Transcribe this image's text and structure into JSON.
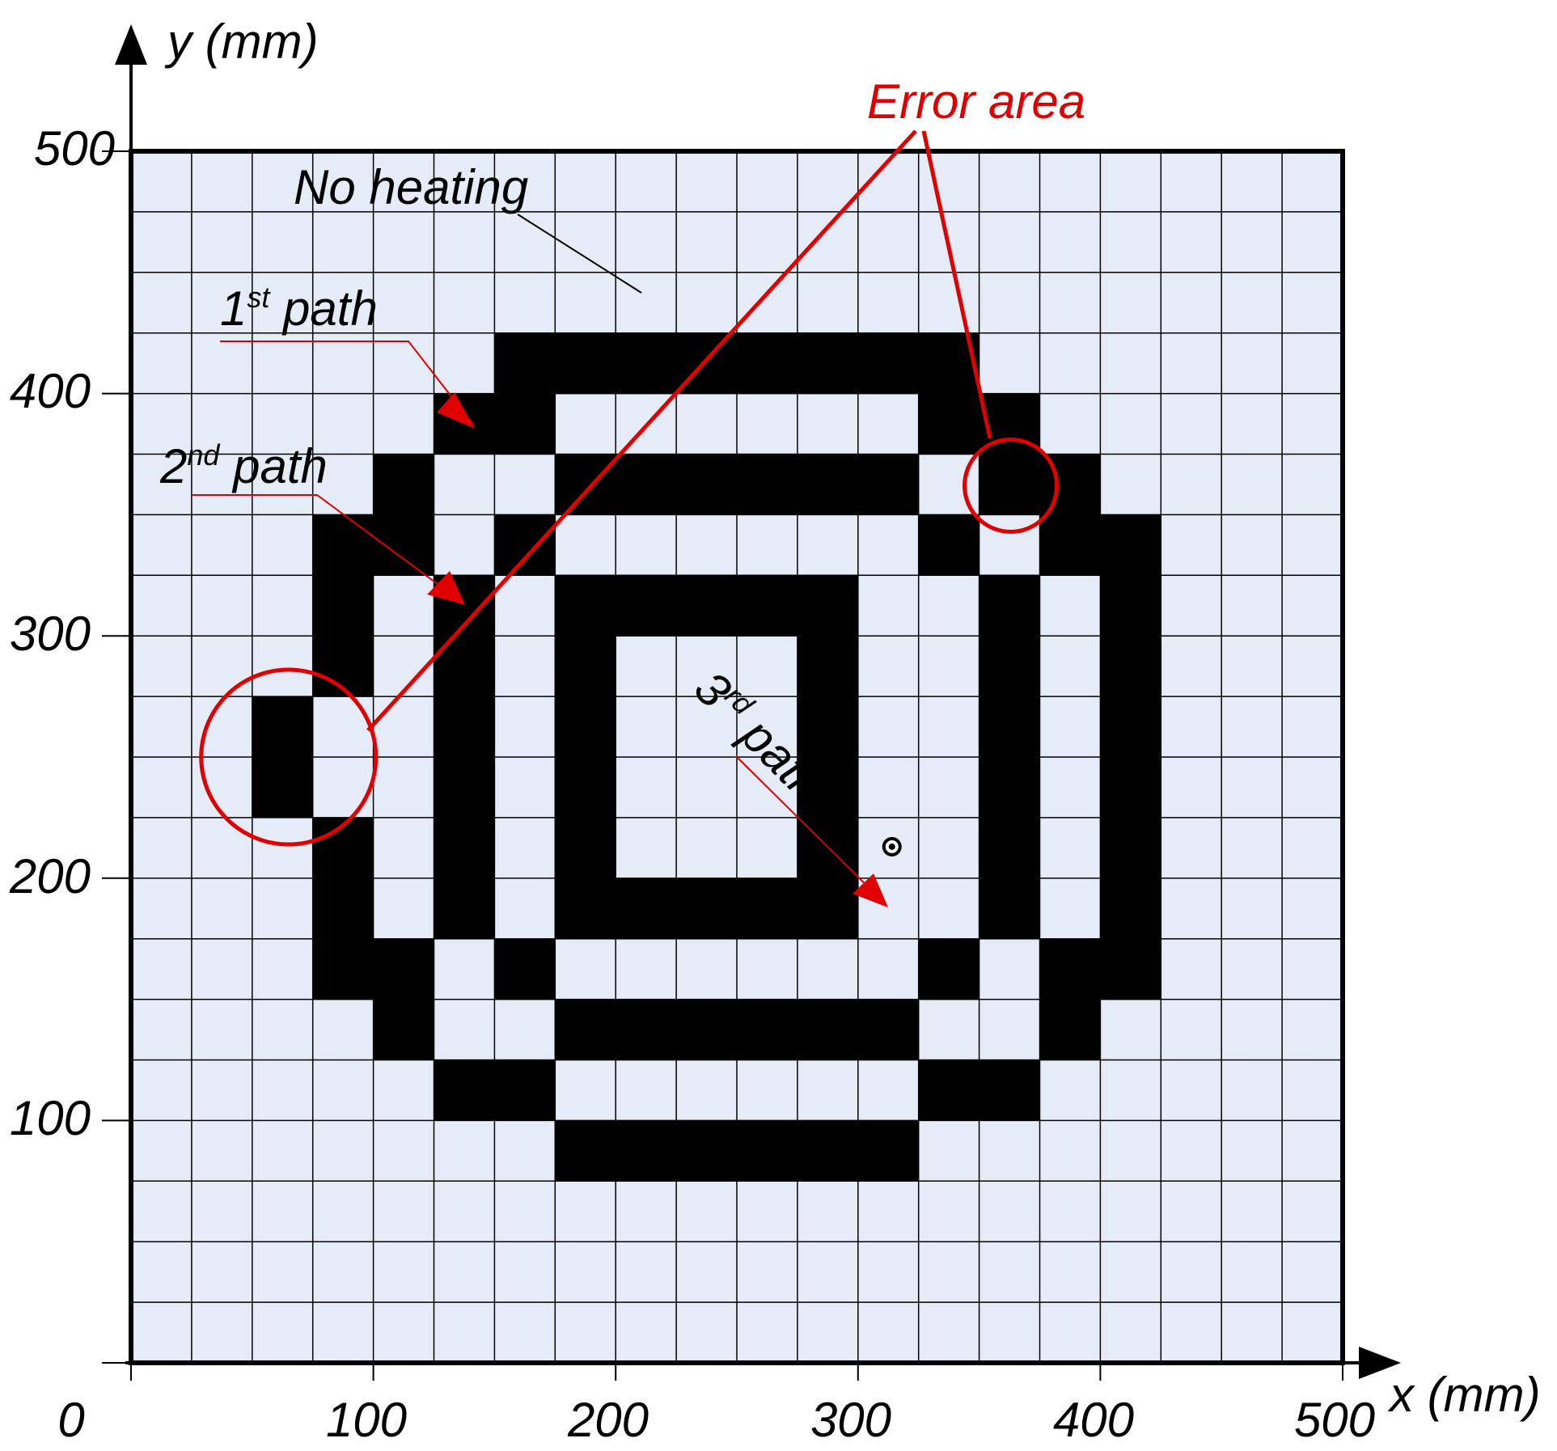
{
  "axes": {
    "x_label": "x (mm)",
    "y_label": "y (mm)",
    "x_ticks": [
      "0",
      "100",
      "200",
      "300",
      "400",
      "500"
    ],
    "y_ticks": [
      "100",
      "200",
      "300",
      "400",
      "500"
    ],
    "x_range": [
      0,
      500
    ],
    "y_range": [
      0,
      500
    ],
    "grid_step_mm": 25
  },
  "labels": {
    "no_heating": "No heating",
    "path1_num": "1",
    "path1_sup": "st",
    "path1_word": " path",
    "path2_num": "2",
    "path2_sup": "nd",
    "path2_word": " path",
    "path3_num": "3",
    "path3_sup": "rd",
    "path3_word": " path",
    "error_area": "Error area"
  },
  "colors": {
    "background_cell": "#e6ecf7",
    "heated_cell": "#000000",
    "grid_line": "#000000",
    "error": "#e00000",
    "annotation_arrow": "#e00000"
  },
  "heated_cells_mm": [
    [
      150,
      400
    ],
    [
      175,
      400
    ],
    [
      200,
      400
    ],
    [
      225,
      400
    ],
    [
      250,
      400
    ],
    [
      275,
      400
    ],
    [
      300,
      400
    ],
    [
      325,
      400
    ],
    [
      125,
      375
    ],
    [
      150,
      375
    ],
    [
      325,
      375
    ],
    [
      350,
      375
    ],
    [
      100,
      350
    ],
    [
      175,
      350
    ],
    [
      200,
      350
    ],
    [
      225,
      350
    ],
    [
      250,
      350
    ],
    [
      275,
      350
    ],
    [
      300,
      350
    ],
    [
      350,
      350
    ],
    [
      375,
      350
    ],
    [
      75,
      325
    ],
    [
      100,
      325
    ],
    [
      150,
      325
    ],
    [
      325,
      325
    ],
    [
      375,
      325
    ],
    [
      400,
      325
    ],
    [
      75,
      300
    ],
    [
      125,
      300
    ],
    [
      175,
      300
    ],
    [
      200,
      300
    ],
    [
      225,
      300
    ],
    [
      250,
      300
    ],
    [
      275,
      300
    ],
    [
      350,
      300
    ],
    [
      400,
      300
    ],
    [
      75,
      275
    ],
    [
      125,
      275
    ],
    [
      175,
      275
    ],
    [
      275,
      275
    ],
    [
      350,
      275
    ],
    [
      400,
      275
    ],
    [
      50,
      250
    ],
    [
      125,
      250
    ],
    [
      175,
      250
    ],
    [
      275,
      250
    ],
    [
      350,
      250
    ],
    [
      400,
      250
    ],
    [
      50,
      225
    ],
    [
      125,
      225
    ],
    [
      175,
      225
    ],
    [
      275,
      225
    ],
    [
      350,
      225
    ],
    [
      400,
      225
    ],
    [
      75,
      200
    ],
    [
      125,
      200
    ],
    [
      175,
      200
    ],
    [
      275,
      200
    ],
    [
      350,
      200
    ],
    [
      400,
      200
    ],
    [
      75,
      175
    ],
    [
      125,
      175
    ],
    [
      175,
      175
    ],
    [
      200,
      175
    ],
    [
      225,
      175
    ],
    [
      250,
      175
    ],
    [
      275,
      175
    ],
    [
      350,
      175
    ],
    [
      400,
      175
    ],
    [
      75,
      150
    ],
    [
      100,
      150
    ],
    [
      150,
      150
    ],
    [
      325,
      150
    ],
    [
      375,
      150
    ],
    [
      400,
      150
    ],
    [
      100,
      125
    ],
    [
      175,
      125
    ],
    [
      200,
      125
    ],
    [
      225,
      125
    ],
    [
      250,
      125
    ],
    [
      275,
      125
    ],
    [
      300,
      125
    ],
    [
      375,
      125
    ],
    [
      125,
      100
    ],
    [
      150,
      100
    ],
    [
      325,
      100
    ],
    [
      350,
      100
    ],
    [
      175,
      75
    ],
    [
      200,
      75
    ],
    [
      225,
      75
    ],
    [
      250,
      75
    ],
    [
      275,
      75
    ],
    [
      300,
      75
    ]
  ],
  "start_marker_mm": [
    314,
    213
  ],
  "error_circles_mm": [
    [
      65,
      250
    ],
    [
      363,
      362
    ]
  ]
}
